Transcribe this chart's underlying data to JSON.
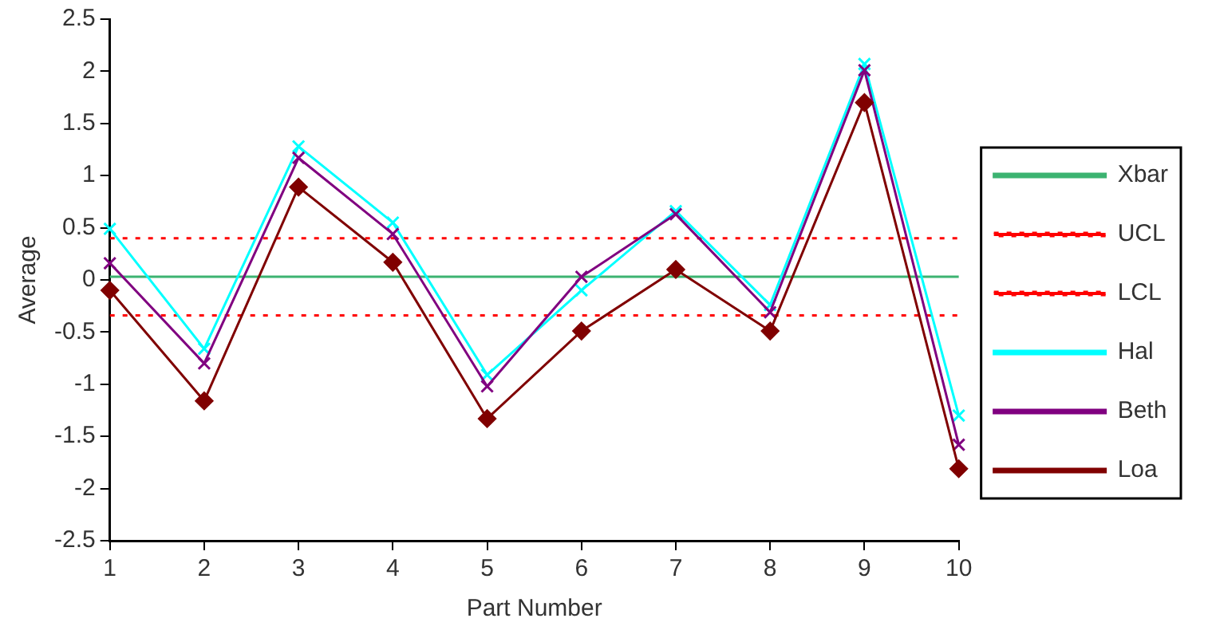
{
  "chart_data": {
    "type": "line",
    "xlabel": "Part Number",
    "ylabel": "Average",
    "categories": [
      "1",
      "2",
      "3",
      "4",
      "5",
      "6",
      "7",
      "8",
      "9",
      "10"
    ],
    "series": [
      {
        "name": "Xbar",
        "color": "#3cb371",
        "marker": "none",
        "line_style": "solid",
        "values": [
          0.03,
          0.03,
          0.03,
          0.03,
          0.03,
          0.03,
          0.03,
          0.03,
          0.03,
          0.03
        ]
      },
      {
        "name": "UCL",
        "color": "#ff0000",
        "marker": "none",
        "line_style": "dotted",
        "values": [
          0.4,
          0.4,
          0.4,
          0.4,
          0.4,
          0.4,
          0.4,
          0.4,
          0.4,
          0.4
        ]
      },
      {
        "name": "LCL",
        "color": "#ff0000",
        "marker": "none",
        "line_style": "dotted",
        "values": [
          -0.34,
          -0.34,
          -0.34,
          -0.34,
          -0.34,
          -0.34,
          -0.34,
          -0.34,
          -0.34,
          -0.34
        ]
      },
      {
        "name": "Hal",
        "color": "#00ffff",
        "marker": "cross",
        "line_style": "solid",
        "values": [
          0.49,
          -0.66,
          1.28,
          0.55,
          -0.91,
          -0.1,
          0.66,
          -0.24,
          2.07,
          -1.3
        ]
      },
      {
        "name": "Beth",
        "color": "#800080",
        "marker": "cross",
        "line_style": "solid",
        "values": [
          0.16,
          -0.8,
          1.17,
          0.44,
          -1.02,
          0.03,
          0.63,
          -0.31,
          2.01,
          -1.58
        ]
      },
      {
        "name": "Loa",
        "color": "#800000",
        "marker": "diamond",
        "line_style": "solid",
        "values": [
          -0.1,
          -1.16,
          0.89,
          0.17,
          -1.33,
          -0.49,
          0.1,
          -0.49,
          1.7,
          -1.81
        ]
      }
    ],
    "ylim": [
      -2.5,
      2.5
    ],
    "yticks": [
      -2.5,
      -2,
      -1.5,
      -1,
      -0.5,
      0,
      0.5,
      1,
      1.5,
      2,
      2.5
    ],
    "legend": "right"
  }
}
